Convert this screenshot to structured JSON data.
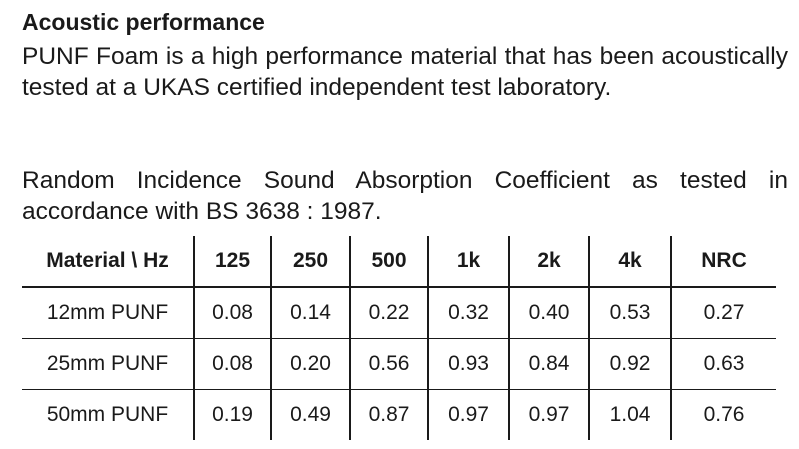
{
  "heading": "Acoustic performance",
  "paragraphs": [
    "PUNF Foam is a high performance material that has been acoustically tested at a UKAS certified independent test laboratory.",
    "Random Incidence Sound Absorption Coefficient as tested in accordance with BS 3638 : 1987."
  ],
  "table": {
    "header": [
      "Material \\ Hz",
      "125",
      "250",
      "500",
      "1k",
      "2k",
      "4k",
      "NRC"
    ],
    "rows": [
      [
        "12mm PUNF",
        "0.08",
        "0.14",
        "0.22",
        "0.32",
        "0.40",
        "0.53",
        "0.27"
      ],
      [
        "25mm PUNF",
        "0.08",
        "0.20",
        "0.56",
        "0.93",
        "0.84",
        "0.92",
        "0.63"
      ],
      [
        "50mm PUNF",
        "0.19",
        "0.49",
        "0.87",
        "0.97",
        "0.97",
        "1.04",
        "0.76"
      ]
    ]
  }
}
